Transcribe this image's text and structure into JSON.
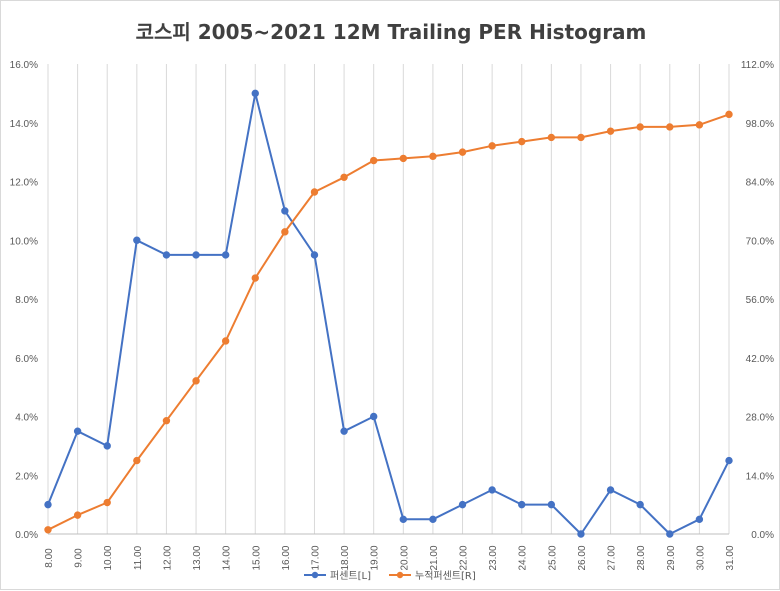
{
  "chart_data": {
    "type": "line",
    "title": "코스피 2005~2021 12M Trailing PER Histogram",
    "categories": [
      "8.00",
      "9.00",
      "10.00",
      "11.00",
      "12.00",
      "13.00",
      "14.00",
      "15.00",
      "16.00",
      "17.00",
      "18.00",
      "19.00",
      "20.00",
      "21.00",
      "22.00",
      "23.00",
      "24.00",
      "25.00",
      "26.00",
      "27.00",
      "28.00",
      "29.00",
      "30.00",
      "31.00"
    ],
    "y_left": {
      "min": 0,
      "max": 16,
      "ticks": [
        "0.0%",
        "2.0%",
        "4.0%",
        "6.0%",
        "8.0%",
        "10.0%",
        "12.0%",
        "14.0%",
        "16.0%"
      ]
    },
    "y_right": {
      "min": 0,
      "max": 112,
      "ticks": [
        "0.0%",
        "14.0%",
        "28.0%",
        "42.0%",
        "56.0%",
        "70.0%",
        "84.0%",
        "98.0%",
        "112.0%"
      ]
    },
    "grid": "vertical",
    "legend_position": "bottom",
    "series": [
      {
        "name": "퍼센트[L]",
        "axis": "left",
        "color": "#4472C4",
        "values": [
          1.0,
          3.5,
          3.0,
          10.0,
          9.5,
          9.5,
          9.5,
          15.0,
          11.0,
          9.5,
          3.5,
          4.0,
          0.5,
          0.5,
          1.0,
          1.5,
          1.0,
          1.0,
          0.0,
          1.5,
          1.0,
          0.0,
          0.5,
          2.5
        ]
      },
      {
        "name": "누적퍼센트[R]",
        "axis": "right",
        "color": "#ED7D31",
        "values": [
          1.0,
          4.5,
          7.5,
          17.5,
          27.0,
          36.5,
          46.0,
          61.0,
          72.0,
          81.5,
          85.0,
          89.0,
          89.5,
          90.0,
          91.0,
          92.5,
          93.5,
          94.5,
          94.5,
          96.0,
          97.0,
          97.0,
          97.5,
          100.0
        ]
      }
    ]
  }
}
